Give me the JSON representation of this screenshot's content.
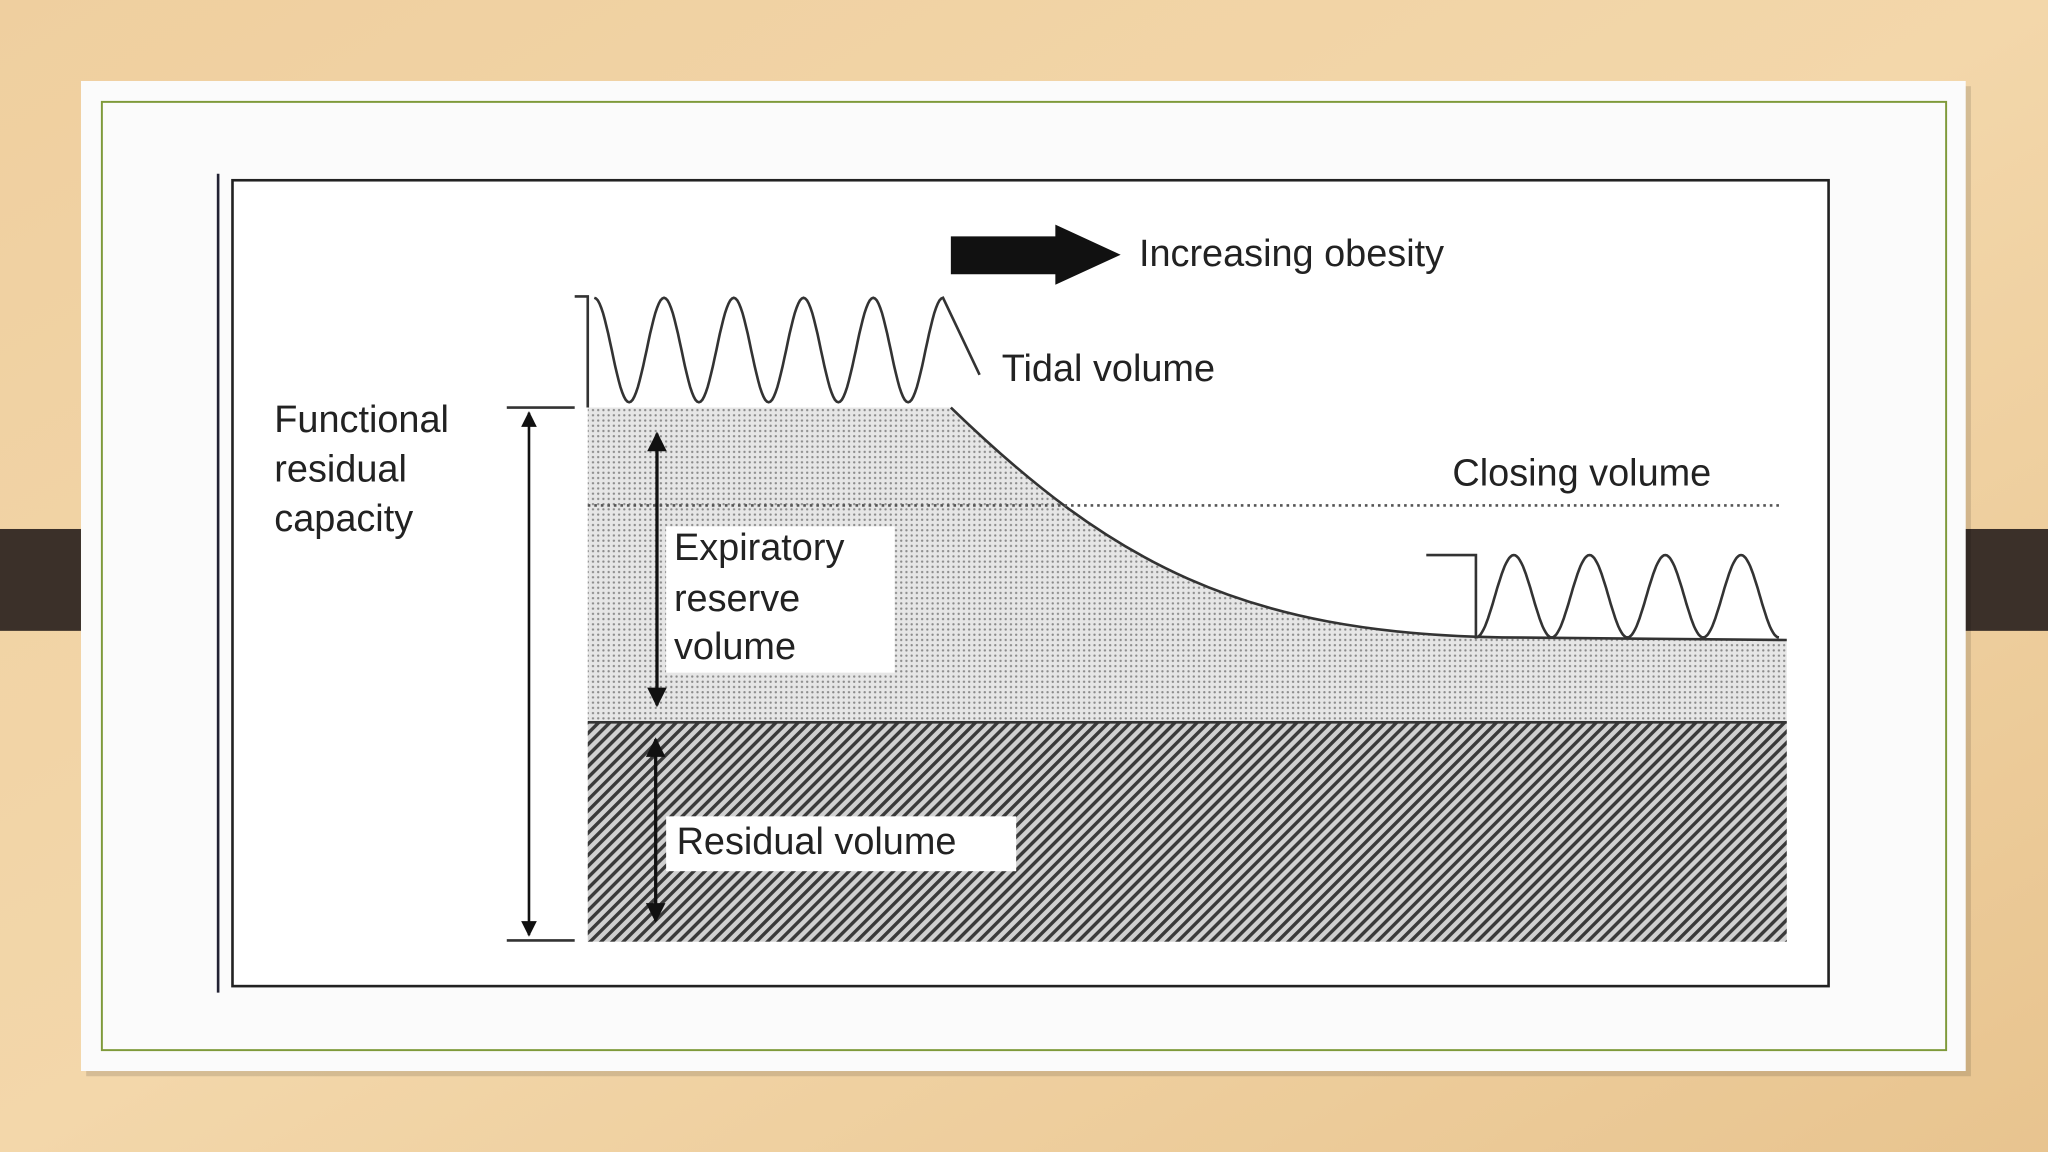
{
  "labels": {
    "increasing_obesity": "Increasing obesity",
    "tidal_volume": "Tidal volume",
    "functional_residual_capacity": [
      "Functional",
      "residual",
      "capacity"
    ],
    "closing_volume": "Closing volume",
    "expiratory_reserve_volume": [
      "Expiratory",
      "reserve",
      "volume"
    ],
    "residual_volume": "Residual volume"
  }
}
